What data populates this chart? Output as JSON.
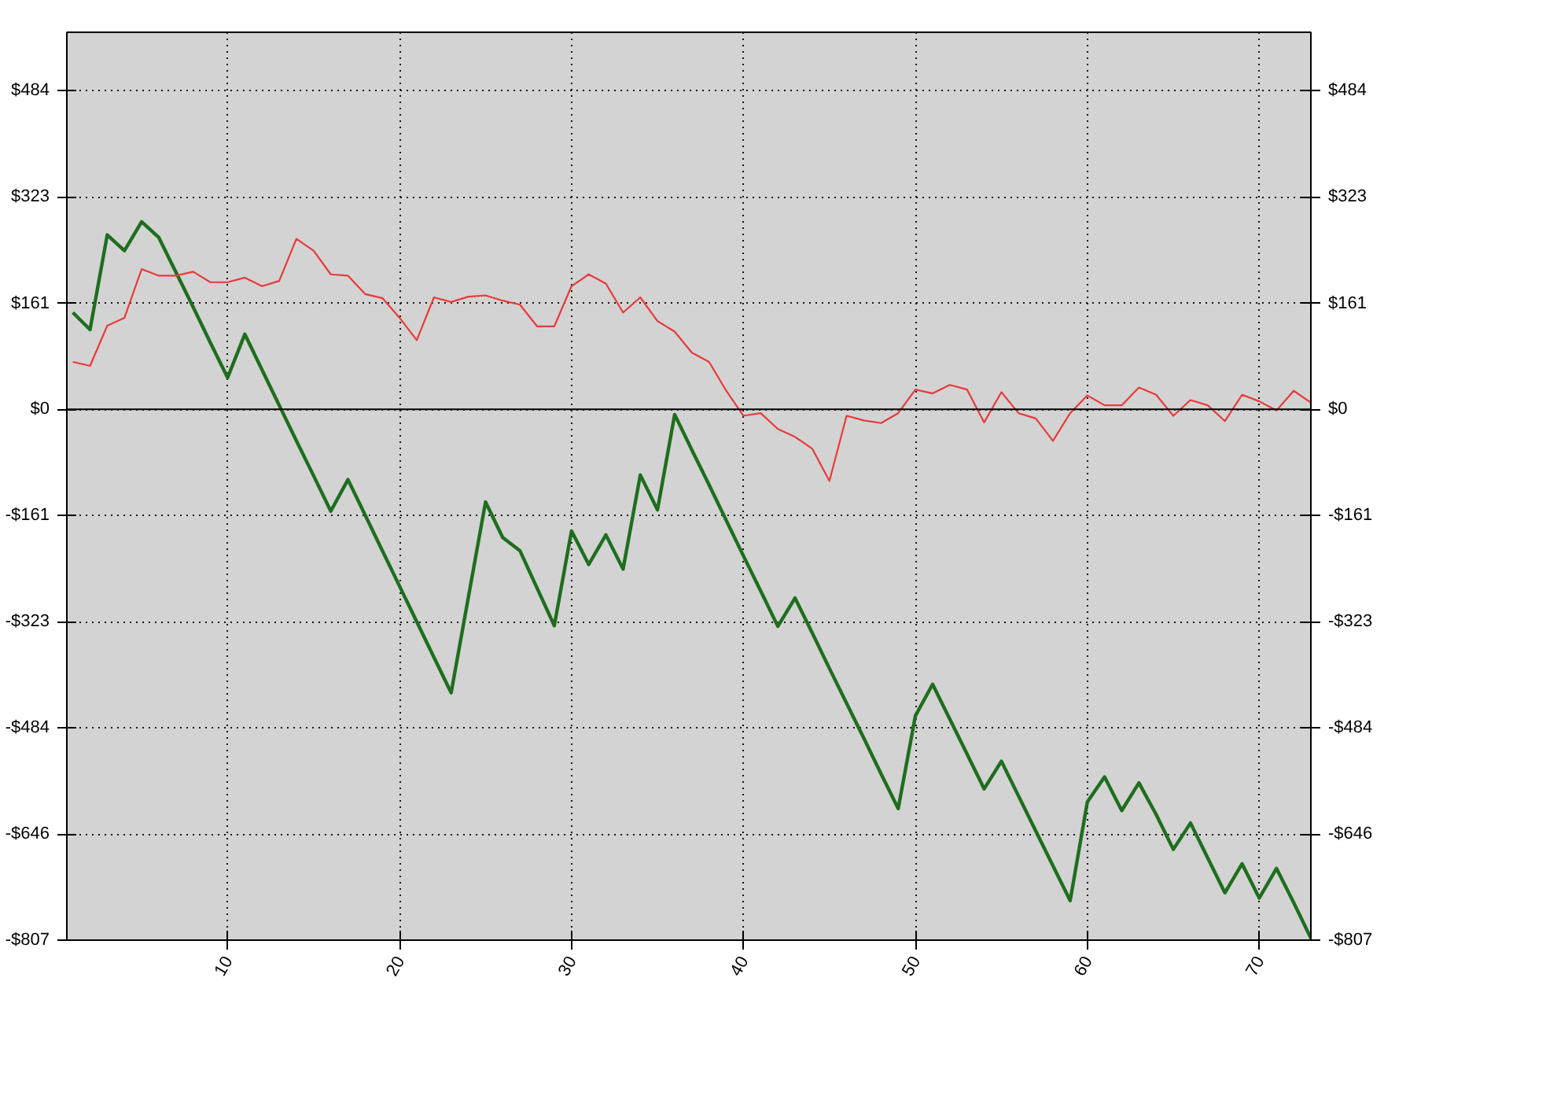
{
  "chart_data": {
    "type": "line",
    "x": [
      1,
      2,
      3,
      4,
      5,
      6,
      7,
      8,
      9,
      10,
      11,
      12,
      13,
      14,
      15,
      16,
      17,
      18,
      19,
      20,
      21,
      22,
      23,
      24,
      25,
      26,
      27,
      28,
      29,
      30,
      31,
      32,
      33,
      34,
      35,
      36,
      37,
      38,
      39,
      40,
      41,
      42,
      43,
      44,
      45,
      46,
      47,
      48,
      49,
      50,
      51,
      52,
      53,
      54,
      55,
      56,
      57,
      58,
      59,
      60,
      61,
      62,
      63,
      64,
      65,
      66,
      67,
      68,
      69,
      70,
      71,
      72,
      73
    ],
    "series": [
      {
        "color": "#1e6e1e",
        "values": [
          147,
          121,
          265,
          241,
          285,
          261,
          208,
          155,
          101,
          48,
          114,
          60,
          6,
          -48,
          -101,
          -155,
          -107,
          -161,
          -215,
          -269,
          -323,
          -377,
          -431,
          -286,
          -141,
          -195,
          -215,
          -272,
          -329,
          -185,
          -236,
          -191,
          -243,
          -100,
          -153,
          -8,
          -62,
          -115,
          -169,
          -223,
          -276,
          -330,
          -287,
          -340,
          -394,
          -447,
          -500,
          -554,
          -607,
          -466,
          -418,
          -471,
          -524,
          -577,
          -535,
          -588,
          -641,
          -694,
          -747,
          -597,
          -559,
          -610,
          -568,
          -616,
          -669,
          -629,
          -682,
          -735,
          -691,
          -743,
          -698,
          -750,
          -804
        ]
      },
      {
        "color": "#e83a3a",
        "values": [
          72,
          66,
          127,
          139,
          213,
          203,
          203,
          209,
          193,
          193,
          200,
          187,
          195,
          259,
          241,
          205,
          203,
          175,
          169,
          139,
          105,
          170,
          163,
          171,
          173,
          165,
          159,
          126,
          126,
          187,
          205,
          191,
          147,
          170,
          134,
          118,
          86,
          72,
          28,
          -10,
          -6,
          -30,
          -42,
          -60,
          -109,
          -10,
          -17,
          -21,
          -6,
          30,
          24,
          37,
          30,
          -20,
          26,
          -6,
          -14,
          -48,
          -6,
          21,
          6,
          6,
          33,
          22,
          -10,
          14,
          6,
          -18,
          22,
          12,
          -2,
          28,
          10
        ]
      }
    ],
    "xlim": [
      0.65,
      73
    ],
    "xticks": [
      10,
      20,
      30,
      40,
      50,
      60,
      70
    ],
    "ylim": [
      -807,
      573
    ],
    "yticks": [
      {
        "value": 484,
        "label": "$484"
      },
      {
        "value": 323,
        "label": "$323"
      },
      {
        "value": 161,
        "label": "$161"
      },
      {
        "value": 0,
        "label": "$0"
      },
      {
        "value": -161,
        "label": "-$161"
      },
      {
        "value": -323,
        "label": "-$323"
      },
      {
        "value": -484,
        "label": "-$484"
      },
      {
        "value": -646,
        "label": "-$646"
      },
      {
        "value": -807,
        "label": "-$807"
      }
    ],
    "y2lim": [
      -807,
      573
    ],
    "y2ticks": [
      {
        "value": 484,
        "label": "$484"
      },
      {
        "value": 323,
        "label": "$323"
      },
      {
        "value": 161,
        "label": "$161"
      },
      {
        "value": 0,
        "label": "$0"
      },
      {
        "value": -161,
        "label": "-$161"
      },
      {
        "value": -323,
        "label": "-$323"
      },
      {
        "value": -484,
        "label": "-$484"
      },
      {
        "value": -646,
        "label": "-$646"
      },
      {
        "value": -807,
        "label": "-$807"
      }
    ],
    "ref_lines": [
      {
        "axis": "y",
        "value": 0,
        "color": "#000000",
        "line_style": "solid"
      }
    ],
    "grid": true,
    "marker": "none",
    "line_style": "solid"
  }
}
